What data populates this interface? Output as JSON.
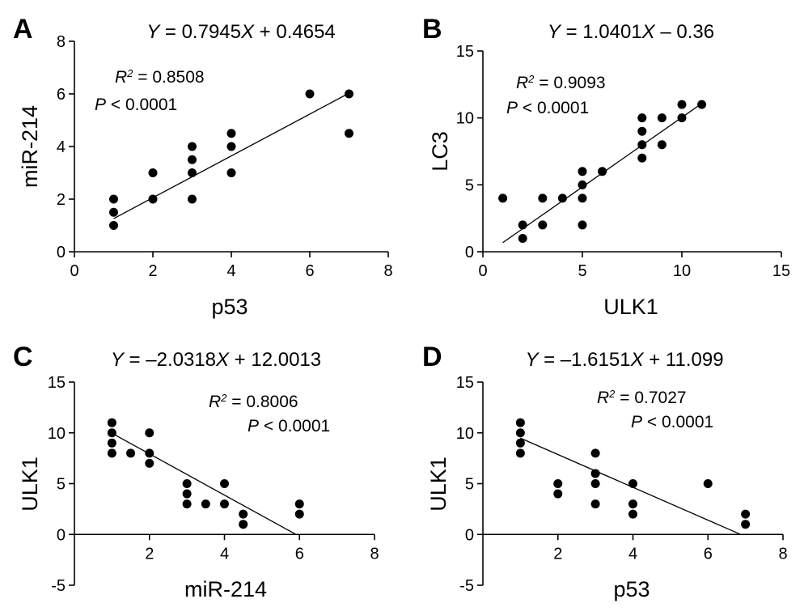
{
  "chart_data": [
    {
      "panel": "A",
      "type": "scatter",
      "equation": {
        "prefix": "",
        "pre_x": " = 0.7945",
        "post_x": " + 0.4654"
      },
      "r2": {
        "value": " = 0.8508"
      },
      "p": {
        "value": " < 0.0001"
      },
      "xlabel": "p53",
      "ylabel": "miR-214",
      "xlim": [
        0,
        8
      ],
      "ylim": [
        0,
        8
      ],
      "xticks": [
        0,
        2,
        4,
        6,
        8
      ],
      "yticks": [
        0,
        2,
        4,
        6,
        8
      ],
      "fit": {
        "slope": 0.7945,
        "intercept": 0.4654,
        "x_range": [
          1,
          7
        ]
      },
      "points": [
        [
          1,
          1
        ],
        [
          1,
          1.5
        ],
        [
          1,
          2
        ],
        [
          2,
          2
        ],
        [
          2,
          3
        ],
        [
          3,
          2
        ],
        [
          3,
          3
        ],
        [
          3,
          3.5
        ],
        [
          3,
          4
        ],
        [
          4,
          3
        ],
        [
          4,
          4
        ],
        [
          4,
          4.5
        ],
        [
          6,
          6
        ],
        [
          7,
          4.5
        ],
        [
          7,
          6
        ]
      ]
    },
    {
      "panel": "B",
      "type": "scatter",
      "equation": {
        "prefix": "",
        "pre_x": " = 1.0401",
        "post_x": " – 0.36"
      },
      "r2": {
        "value": " = 0.9093"
      },
      "p": {
        "value": " < 0.0001"
      },
      "xlabel": "ULK1",
      "ylabel": "LC3",
      "xlim": [
        0,
        15
      ],
      "ylim": [
        0,
        15
      ],
      "xticks": [
        0,
        5,
        10,
        15
      ],
      "yticks": [
        0,
        5,
        10,
        15
      ],
      "fit": {
        "slope": 1.0401,
        "intercept": -0.36,
        "x_range": [
          1,
          11
        ]
      },
      "points": [
        [
          1,
          4
        ],
        [
          2,
          1
        ],
        [
          2,
          2
        ],
        [
          3,
          2
        ],
        [
          3,
          4
        ],
        [
          4,
          4
        ],
        [
          5,
          2
        ],
        [
          5,
          4
        ],
        [
          5,
          5
        ],
        [
          5,
          6
        ],
        [
          6,
          6
        ],
        [
          8,
          7
        ],
        [
          8,
          8
        ],
        [
          8,
          9
        ],
        [
          8,
          10
        ],
        [
          9,
          8
        ],
        [
          9,
          10
        ],
        [
          10,
          10
        ],
        [
          10,
          11
        ],
        [
          11,
          11
        ]
      ]
    },
    {
      "panel": "C",
      "type": "scatter",
      "equation": {
        "prefix": "",
        "pre_x": " = –2.0318",
        "post_x": " + 12.0013"
      },
      "r2": {
        "value": " = 0.8006"
      },
      "p": {
        "value": " < 0.0001"
      },
      "xlabel": "miR-214",
      "ylabel": "ULK1",
      "xlim": [
        0,
        8
      ],
      "ylim": [
        -5,
        15
      ],
      "xticks": [
        2,
        4,
        6,
        8
      ],
      "yticks": [
        -5,
        0,
        5,
        10,
        15
      ],
      "ytick_labels": [
        "-5",
        "0",
        "5",
        "10",
        "15"
      ],
      "fit": {
        "slope": -2.0318,
        "intercept": 12.0013,
        "x_range": [
          1,
          5.91
        ]
      },
      "points": [
        [
          1,
          8
        ],
        [
          1,
          9
        ],
        [
          1,
          10
        ],
        [
          1,
          11
        ],
        [
          1.5,
          8
        ],
        [
          2,
          7
        ],
        [
          2,
          8
        ],
        [
          2,
          10
        ],
        [
          3,
          3
        ],
        [
          3,
          4
        ],
        [
          3,
          5
        ],
        [
          3.5,
          3
        ],
        [
          4,
          3
        ],
        [
          4,
          5
        ],
        [
          4.5,
          1
        ],
        [
          4.5,
          2
        ],
        [
          6,
          2
        ],
        [
          6,
          3
        ]
      ]
    },
    {
      "panel": "D",
      "type": "scatter",
      "equation": {
        "prefix": "",
        "pre_x": " = –1.6151",
        "post_x": " + 11.099"
      },
      "r2": {
        "value": " = 0.7027"
      },
      "p": {
        "value": " < 0.0001"
      },
      "xlabel": "p53",
      "ylabel": "ULK1",
      "xlim": [
        0,
        8
      ],
      "ylim": [
        -5,
        15
      ],
      "xticks": [
        2,
        4,
        6,
        8
      ],
      "yticks": [
        -5,
        0,
        5,
        10,
        15
      ],
      "ytick_labels": [
        "-5",
        "0",
        "5",
        "10",
        "15"
      ],
      "fit": {
        "slope": -1.6151,
        "intercept": 11.099,
        "x_range": [
          1,
          6.87
        ]
      },
      "points": [
        [
          1,
          8
        ],
        [
          1,
          9
        ],
        [
          1,
          10
        ],
        [
          1,
          11
        ],
        [
          2,
          4
        ],
        [
          2,
          5
        ],
        [
          3,
          3
        ],
        [
          3,
          5
        ],
        [
          3,
          6
        ],
        [
          3,
          8
        ],
        [
          4,
          2
        ],
        [
          4,
          3
        ],
        [
          4,
          5
        ],
        [
          6,
          5
        ],
        [
          7,
          1
        ],
        [
          7,
          2
        ]
      ]
    }
  ]
}
